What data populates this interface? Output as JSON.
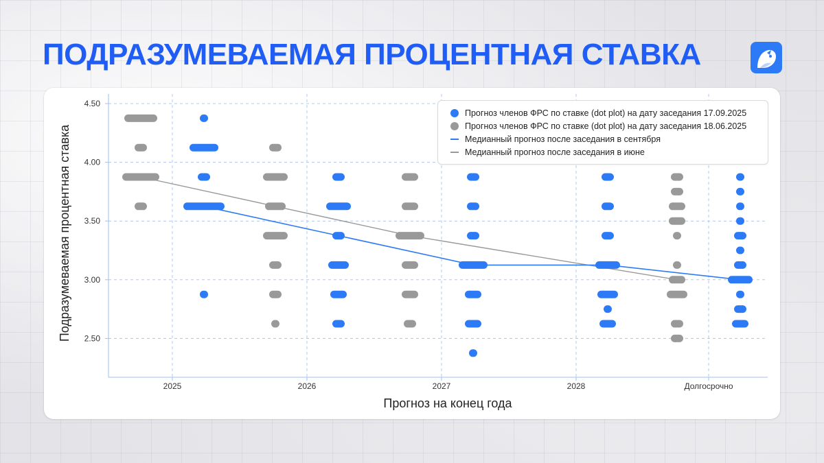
{
  "title": "ПОДРАЗУМЕВАЕМАЯ ПРОЦЕНТНАЯ СТАВКА",
  "logo": {
    "icon": "bird-logo-icon",
    "color": "#2d7af6"
  },
  "colors": {
    "sept": "#2d7af6",
    "june": "#999999",
    "title": "#1f5df5"
  },
  "chart_data": {
    "type": "scatter",
    "xlabel": "Прогноз на конец года",
    "ylabel": "Подразумеваемая процентная ставка",
    "categories": [
      "2025",
      "2026",
      "2027",
      "2028",
      "Долгосрочно"
    ],
    "ylim": [
      2.2,
      4.55
    ],
    "yticks": [
      "4.50",
      "4.00",
      "3.50",
      "3.00",
      "2.50"
    ],
    "yticks_values": [
      4.5,
      4.0,
      3.5,
      3.0,
      2.5
    ],
    "grid": true,
    "legend_position": "top-right",
    "legend": [
      "Прогноз членов ФРС по ставке (dot plot) на дату заседания 17.09.2025",
      "Прогноз членов ФРС по ставке (dot plot) на дату заседания 18.06.2025",
      "Медианный прогноз после заседания в сентября",
      "Медианный прогноз после заседания в июне"
    ],
    "dot_series": [
      {
        "key": "june",
        "points": [
          {
            "category": "2025",
            "rate": 4.375,
            "count": 7
          },
          {
            "category": "2025",
            "rate": 4.125,
            "count": 2
          },
          {
            "category": "2025",
            "rate": 3.875,
            "count": 8
          },
          {
            "category": "2025",
            "rate": 3.625,
            "count": 2
          },
          {
            "category": "2026",
            "rate": 4.125,
            "count": 2
          },
          {
            "category": "2026",
            "rate": 3.875,
            "count": 5
          },
          {
            "category": "2026",
            "rate": 3.625,
            "count": 4
          },
          {
            "category": "2026",
            "rate": 3.375,
            "count": 5
          },
          {
            "category": "2026",
            "rate": 3.125,
            "count": 2
          },
          {
            "category": "2026",
            "rate": 2.875,
            "count": 2
          },
          {
            "category": "2026",
            "rate": 2.625,
            "count": 1
          },
          {
            "category": "2027",
            "rate": 3.875,
            "count": 3
          },
          {
            "category": "2027",
            "rate": 3.625,
            "count": 3
          },
          {
            "category": "2027",
            "rate": 3.375,
            "count": 6
          },
          {
            "category": "2027",
            "rate": 3.125,
            "count": 3
          },
          {
            "category": "2027",
            "rate": 2.875,
            "count": 3
          },
          {
            "category": "2027",
            "rate": 2.625,
            "count": 2
          },
          {
            "category": "Долгосрочно",
            "rate": 3.875,
            "count": 2
          },
          {
            "category": "Долгосрочно",
            "rate": 3.75,
            "count": 2
          },
          {
            "category": "Долгосрочно",
            "rate": 3.625,
            "count": 3
          },
          {
            "category": "Долгосрочно",
            "rate": 3.5,
            "count": 3
          },
          {
            "category": "Долгосрочно",
            "rate": 3.375,
            "count": 1
          },
          {
            "category": "Долгосрочно",
            "rate": 3.125,
            "count": 1
          },
          {
            "category": "Долгосрочно",
            "rate": 3.0,
            "count": 3
          },
          {
            "category": "Долгосрочно",
            "rate": 2.875,
            "count": 4
          },
          {
            "category": "Долгосрочно",
            "rate": 2.625,
            "count": 2
          },
          {
            "category": "Долгосрочно",
            "rate": 2.5,
            "count": 2
          }
        ]
      },
      {
        "key": "sept",
        "points": [
          {
            "category": "2025",
            "rate": 4.375,
            "count": 1
          },
          {
            "category": "2025",
            "rate": 4.125,
            "count": 6
          },
          {
            "category": "2025",
            "rate": 3.875,
            "count": 2
          },
          {
            "category": "2025",
            "rate": 3.625,
            "count": 9
          },
          {
            "category": "2025",
            "rate": 2.875,
            "count": 1
          },
          {
            "category": "2026",
            "rate": 3.875,
            "count": 2
          },
          {
            "category": "2026",
            "rate": 3.625,
            "count": 5
          },
          {
            "category": "2026",
            "rate": 3.375,
            "count": 2
          },
          {
            "category": "2026",
            "rate": 3.125,
            "count": 4
          },
          {
            "category": "2026",
            "rate": 2.875,
            "count": 3
          },
          {
            "category": "2026",
            "rate": 2.625,
            "count": 2
          },
          {
            "category": "2027",
            "rate": 3.875,
            "count": 2
          },
          {
            "category": "2027",
            "rate": 3.625,
            "count": 2
          },
          {
            "category": "2027",
            "rate": 3.375,
            "count": 2
          },
          {
            "category": "2027",
            "rate": 3.125,
            "count": 6
          },
          {
            "category": "2027",
            "rate": 2.875,
            "count": 3
          },
          {
            "category": "2027",
            "rate": 2.625,
            "count": 3
          },
          {
            "category": "2027",
            "rate": 2.375,
            "count": 1
          },
          {
            "category": "2028",
            "rate": 3.875,
            "count": 2
          },
          {
            "category": "2028",
            "rate": 3.625,
            "count": 2
          },
          {
            "category": "2028",
            "rate": 3.375,
            "count": 2
          },
          {
            "category": "2028",
            "rate": 3.125,
            "count": 5
          },
          {
            "category": "2028",
            "rate": 2.875,
            "count": 4
          },
          {
            "category": "2028",
            "rate": 2.75,
            "count": 1
          },
          {
            "category": "2028",
            "rate": 2.625,
            "count": 3
          },
          {
            "category": "Долгосрочно",
            "rate": 3.875,
            "count": 1
          },
          {
            "category": "Долгосрочно",
            "rate": 3.75,
            "count": 1
          },
          {
            "category": "Долгосрочно",
            "rate": 3.625,
            "count": 1
          },
          {
            "category": "Долгосрочно",
            "rate": 3.5,
            "count": 1
          },
          {
            "category": "Долгосрочно",
            "rate": 3.375,
            "count": 2
          },
          {
            "category": "Долгосрочно",
            "rate": 3.25,
            "count": 1
          },
          {
            "category": "Долгосрочно",
            "rate": 3.125,
            "count": 2
          },
          {
            "category": "Долгосрочно",
            "rate": 3.0,
            "count": 5
          },
          {
            "category": "Долгосрочно",
            "rate": 2.875,
            "count": 1
          },
          {
            "category": "Долгосрочно",
            "rate": 2.75,
            "count": 2
          },
          {
            "category": "Долгосрочно",
            "rate": 2.625,
            "count": 3
          }
        ]
      }
    ],
    "median_series": [
      {
        "key": "sept",
        "categories": [
          "2025",
          "2026",
          "2027",
          "2028",
          "Долгосрочно"
        ],
        "values": [
          3.625,
          3.375,
          3.125,
          3.125,
          3.0
        ]
      },
      {
        "key": "june",
        "categories": [
          "2025",
          "2026",
          "2027",
          "Долгосрочно"
        ],
        "values": [
          3.875,
          3.625,
          3.375,
          3.0
        ]
      }
    ]
  }
}
